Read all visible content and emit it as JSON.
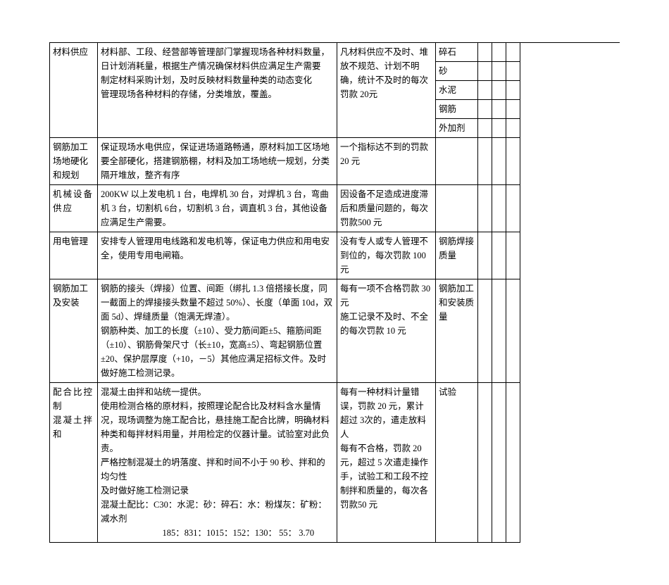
{
  "row1": {
    "c1": "材料供应",
    "c2": "材料部、工段、经营部等管理部门掌握现场各种材料数量，日计划消耗量，根据生产情况确保材料供应满足生产需要\n制定材料采购计划，及时反映材料数量种类的动态变化\n管理现场各种材料的存储，分类堆放，覆盖。",
    "c3": "凡材料供应不及时、堆放不规范、计划不明确，统计不及时的每次罚款 20元",
    "matA": "碎石",
    "matB": "砂",
    "matC": "水泥",
    "matD": "钢筋",
    "matE": "外加剂"
  },
  "row2": {
    "c1": "钢筋加工场地硬化和规划",
    "c2": "保证现场水电供应，保证进场道路畅通，原材料加工区场地要全部硬化，搭建钢筋棚，材料及加工场地统一规划，分类隔开堆放，整齐有序",
    "c3": "一个指标达不到的罚款20 元"
  },
  "row3": {
    "c1": "机械设备供应",
    "c2": "200KW 以上发电机 1 台，电焊机 30 台，对焊机 3 台，弯曲机 3 台，切割机 6台，切割机 3 台，调直机 3 台，其他设备应满足生产需要。",
    "c3": "因设备不足造成进度滞后和质量问题的，每次罚款500 元"
  },
  "row4": {
    "c1": "用电管理",
    "c2": "安排专人管理用电线路和发电机等，保证电力供应和用电安全，使用专用电闸箱。",
    "c3": "没有专人或专人管理不到位的，每次罚款 100 元",
    "c4": "钢筋焊接质量"
  },
  "row5": {
    "c1": "钢筋加工及安装",
    "c2": "钢筋的接头（焊接）位置、间距（绑扎 1.3 倍搭接长度，同一截面上的焊接接头数量不超过 50%）、长度（单面 10d，双面 5d）、焊缝质量（饱满无焊渣）。\n钢筋种类、加工的长度（±10）、受力筋间距±5、箍筋间距（±10）、钢筋骨架尺寸（长±10，宽高±5）、弯起钢筋位置±20、保护层厚度（+10，－5）其他应满足招标文件。及时做好施工检测记录。",
    "c3": "每有一项不合格罚款 30元\n施工记录不及时、不全的每次罚款 10 元",
    "c4": "钢筋加工和安装质量"
  },
  "row6": {
    "c1a": "配合比控制",
    "c1b": "混凝土拌和",
    "c2": "混凝土由拌和站统一提供。\n使用检测合格的原材料，按照理论配合比及材料含水量情况，现场调整为施工配合比，悬挂施工配合比牌，明确材料种类和每拌材料用量，并用检定的仪器计量。试验室对此负责。\n严格控制混凝土的坍落度、拌和时间不小于 90 秒、拌和的均匀性\n及时做好施工检测记录\n混凝土配比：C30：水泥：砂：碎石：水：粉煤灰：矿粉：减水剂",
    "c2_last": "185：831：1015：152：130： 55： 3.70",
    "c3": "每有一种材料计量错误，罚款 20 元，累计超过 3次的，遣走放料人\n每有不合格，罚款 20元，超过 5 次遣走操作手，试验工和工段不控制拌和质量的，每次各罚款50 元",
    "c4": "试验"
  }
}
